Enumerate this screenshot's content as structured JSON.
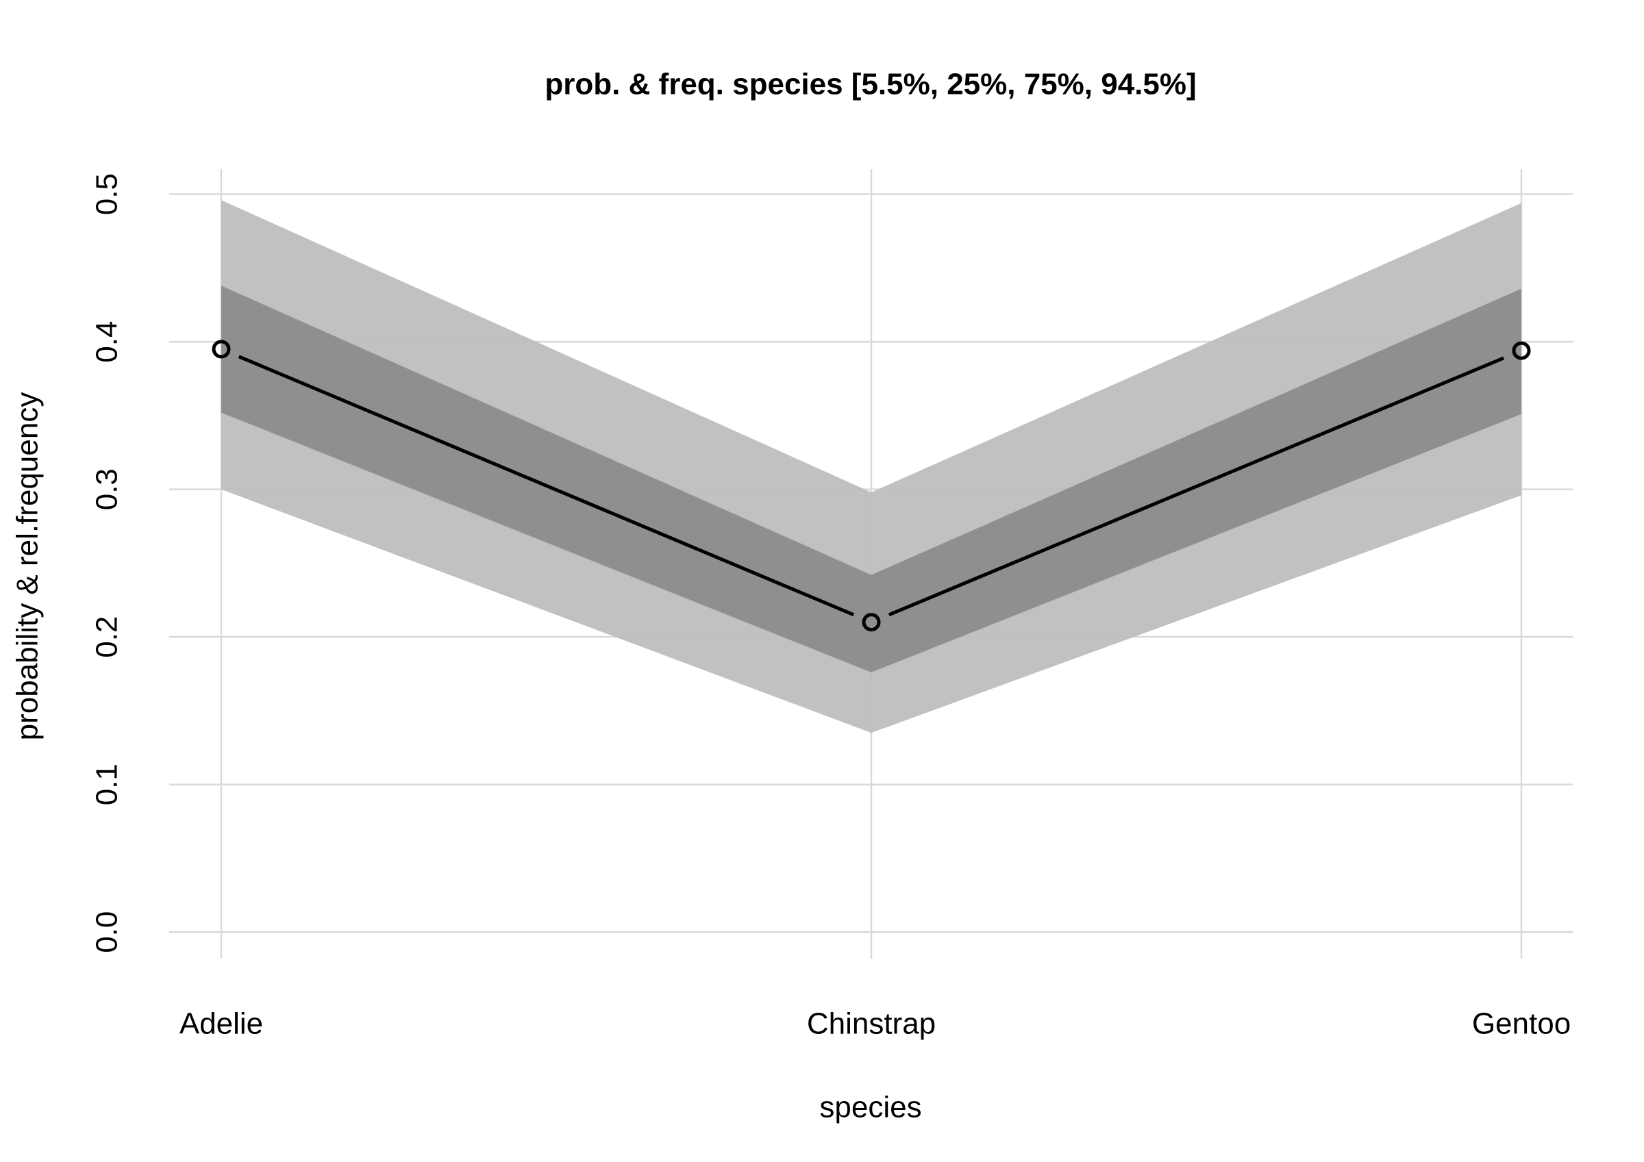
{
  "chart_data": {
    "type": "line",
    "title": "prob. & freq.  species  [5.5%, 25%, 75%, 94.5%]",
    "x_label": "species",
    "y_label": "probability & rel.frequency",
    "categories": [
      "Adelie",
      "Chinstrap",
      "Gentoo"
    ],
    "values": [
      0.395,
      0.21,
      0.394
    ],
    "color": "#000000",
    "bands": [
      {
        "lower": [
          0.3,
          0.135,
          0.296
        ],
        "upper": [
          0.496,
          0.298,
          0.494
        ],
        "color": "#bebebe"
      },
      {
        "lower": [
          0.352,
          0.176,
          0.351
        ],
        "upper": [
          0.438,
          0.242,
          0.436
        ],
        "color": "#8c8c8c"
      }
    ],
    "ylim": [
      -0.018,
      0.517
    ],
    "yticks": [
      {
        "value": 0,
        "label": "0.0"
      },
      0.1,
      0.2,
      0.3,
      0.4,
      0.5
    ],
    "grid": true
  }
}
